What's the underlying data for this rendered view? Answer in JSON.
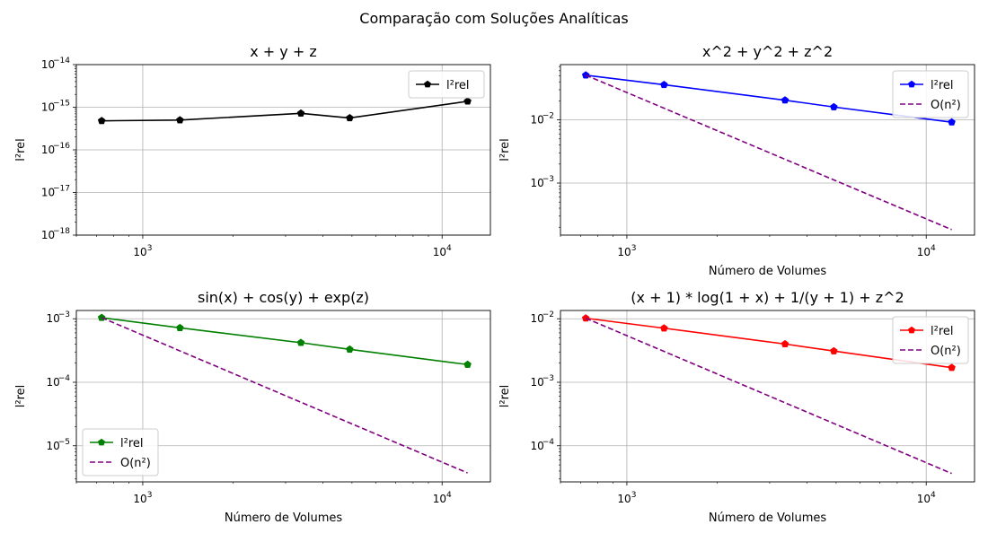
{
  "figure_title": "Comparação com Soluções Analíticas",
  "chart_data": [
    {
      "type": "line",
      "title": "x + y + z",
      "xlabel": "",
      "ylabel": "l²rel",
      "xscale": "log",
      "yscale": "log",
      "xlim": [
        600,
        14500
      ],
      "ylim": [
        1e-18,
        1e-14
      ],
      "xticks": [
        {
          "value": 1000,
          "base": "10",
          "exp": "3"
        },
        {
          "value": 10000,
          "base": "10",
          "exp": "4"
        }
      ],
      "yticks": [
        {
          "value": 1e-18,
          "base": "10",
          "exp": "−18"
        },
        {
          "value": 1e-17,
          "base": "10",
          "exp": "−17"
        },
        {
          "value": 1e-16,
          "base": "10",
          "exp": "−16"
        },
        {
          "value": 1e-15,
          "base": "10",
          "exp": "−15"
        },
        {
          "value": 1e-14,
          "base": "10",
          "exp": "−14"
        }
      ],
      "grid": true,
      "legend_position": "upper right",
      "series": [
        {
          "name": "l²rel",
          "color": "#000000",
          "style": "solid",
          "marker": "pentagon",
          "x": [
            729,
            1331,
            3375,
            4913,
            12167
          ],
          "y": [
            4.8e-16,
            5e-16,
            7.2e-16,
            5.6e-16,
            1.38e-15
          ]
        }
      ]
    },
    {
      "type": "line",
      "title": "x^2 + y^2 + z^2",
      "xlabel": "Número de Volumes",
      "ylabel": "l²rel",
      "xscale": "log",
      "yscale": "log",
      "xlim": [
        600,
        14500
      ],
      "ylim": [
        0.00015,
        0.075
      ],
      "xticks": [
        {
          "value": 1000,
          "base": "10",
          "exp": "3"
        },
        {
          "value": 10000,
          "base": "10",
          "exp": "4"
        }
      ],
      "yticks": [
        {
          "value": 0.001,
          "base": "10",
          "exp": "−3"
        },
        {
          "value": 0.01,
          "base": "10",
          "exp": "−2"
        }
      ],
      "grid": true,
      "legend_position": "upper right",
      "series": [
        {
          "name": "l²rel",
          "color": "#0000ff",
          "style": "solid",
          "marker": "pentagon",
          "x": [
            729,
            1331,
            3375,
            4913,
            12167
          ],
          "y": [
            0.051,
            0.036,
            0.0205,
            0.016,
            0.0092
          ]
        },
        {
          "name": "O(n²)",
          "color": "#800080",
          "style": "dashed",
          "marker": "none",
          "x": [
            729,
            12167
          ],
          "y": [
            0.051,
            0.000183
          ]
        }
      ]
    },
    {
      "type": "line",
      "title": "sin(x) + cos(y) + exp(z)",
      "xlabel": "Número de Volumes",
      "ylabel": "l²rel",
      "xscale": "log",
      "yscale": "log",
      "xlim": [
        600,
        14500
      ],
      "ylim": [
        2.7e-06,
        0.00135
      ],
      "xticks": [
        {
          "value": 1000,
          "base": "10",
          "exp": "3"
        },
        {
          "value": 10000,
          "base": "10",
          "exp": "4"
        }
      ],
      "yticks": [
        {
          "value": 1e-05,
          "base": "10",
          "exp": "−5"
        },
        {
          "value": 0.0001,
          "base": "10",
          "exp": "−4"
        },
        {
          "value": 0.001,
          "base": "10",
          "exp": "−3"
        }
      ],
      "grid": true,
      "legend_position": "lower left",
      "series": [
        {
          "name": "l²rel",
          "color": "#008000",
          "style": "solid",
          "marker": "pentagon",
          "x": [
            729,
            1331,
            3375,
            4913,
            12167
          ],
          "y": [
            0.00104,
            0.00072,
            0.00042,
            0.00033,
            0.00019
          ]
        },
        {
          "name": "O(n²)",
          "color": "#800080",
          "style": "dashed",
          "marker": "none",
          "x": [
            729,
            12167
          ],
          "y": [
            0.00104,
            3.73e-06
          ]
        }
      ]
    },
    {
      "type": "line",
      "title": "(x + 1) * log(1 + x) + 1/(y + 1) + z^2",
      "xlabel": "Número de Volumes",
      "ylabel": "l²rel",
      "xscale": "log",
      "yscale": "log",
      "xlim": [
        600,
        14500
      ],
      "ylim": [
        2.7e-05,
        0.0135
      ],
      "xticks": [
        {
          "value": 1000,
          "base": "10",
          "exp": "3"
        },
        {
          "value": 10000,
          "base": "10",
          "exp": "4"
        }
      ],
      "yticks": [
        {
          "value": 0.0001,
          "base": "10",
          "exp": "−4"
        },
        {
          "value": 0.001,
          "base": "10",
          "exp": "−3"
        },
        {
          "value": 0.01,
          "base": "10",
          "exp": "−2"
        }
      ],
      "grid": true,
      "legend_position": "upper right",
      "series": [
        {
          "name": "l²rel",
          "color": "#ff0000",
          "style": "solid",
          "marker": "pentagon",
          "x": [
            729,
            1331,
            3375,
            4913,
            12167
          ],
          "y": [
            0.0102,
            0.0071,
            0.004,
            0.0031,
            0.0017
          ]
        },
        {
          "name": "O(n²)",
          "color": "#800080",
          "style": "dashed",
          "marker": "none",
          "x": [
            729,
            12167
          ],
          "y": [
            0.0102,
            3.66e-05
          ]
        }
      ]
    }
  ]
}
